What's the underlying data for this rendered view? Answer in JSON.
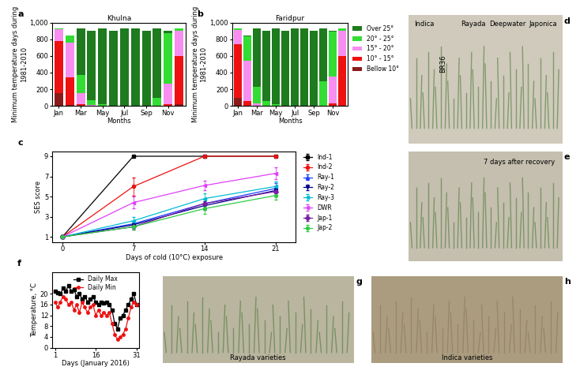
{
  "chart_data": [
    {
      "panel": "a",
      "type": "bar",
      "stacked": true,
      "title": "Khulna",
      "x_label": "Months",
      "y_label": "Minimum temperature days during 1981-2010",
      "categories": [
        "Jan",
        null,
        "Mar",
        null,
        "May",
        null,
        "Jul",
        null,
        "Sep",
        null,
        "Nov",
        null
      ],
      "series": [
        {
          "name": "Bellow 10°",
          "color": "#8b1a1a",
          "values": [
            150,
            10,
            0,
            0,
            0,
            0,
            0,
            0,
            0,
            0,
            0,
            20
          ]
        },
        {
          "name": "10° - 15°",
          "color": "#ee1111",
          "values": [
            630,
            330,
            20,
            0,
            0,
            0,
            0,
            0,
            0,
            0,
            20,
            580
          ]
        },
        {
          "name": "15° - 20°",
          "color": "#f78ef0",
          "values": [
            140,
            420,
            130,
            10,
            0,
            0,
            0,
            0,
            0,
            0,
            250,
            300
          ]
        },
        {
          "name": "20° - 25°",
          "color": "#33dd33",
          "values": [
            10,
            90,
            220,
            60,
            20,
            0,
            0,
            0,
            5,
            100,
            600,
            30
          ]
        },
        {
          "name": "Over 25°",
          "color": "#1e7b1e",
          "values": [
            0,
            0,
            560,
            830,
            910,
            900,
            930,
            930,
            895,
            830,
            30,
            0
          ]
        }
      ],
      "ylim": [
        0,
        1000
      ],
      "yticks": [
        0,
        200,
        400,
        600,
        800,
        {
          "value": 1000,
          "label": "1,000"
        }
      ],
      "grid": false
    },
    {
      "panel": "b",
      "type": "bar",
      "stacked": true,
      "title": "Faridpur",
      "x_label": "Months",
      "y_label": "Minimum temperature days during 1981-2010",
      "categories": [
        "Jan",
        null,
        "Mar",
        null,
        "May",
        null,
        "Jul",
        null,
        "Sep",
        null,
        "Nov",
        null
      ],
      "series": [
        {
          "name": "Bellow 10°",
          "color": "#8b1a1a",
          "values": [
            100,
            0,
            0,
            0,
            0,
            0,
            0,
            0,
            0,
            0,
            0,
            0
          ]
        },
        {
          "name": "10° - 15°",
          "color": "#ee1111",
          "values": [
            640,
            60,
            0,
            0,
            0,
            0,
            0,
            0,
            0,
            0,
            30,
            600
          ]
        },
        {
          "name": "15° - 20°",
          "color": "#f78ef0",
          "values": [
            170,
            480,
            30,
            0,
            0,
            0,
            0,
            0,
            0,
            0,
            320,
            300
          ]
        },
        {
          "name": "20° - 25°",
          "color": "#33dd33",
          "values": [
            20,
            300,
            200,
            60,
            20,
            0,
            0,
            0,
            0,
            300,
            540,
            30
          ]
        },
        {
          "name": "Over 25°",
          "color": "#1e7b1e",
          "values": [
            0,
            10,
            700,
            840,
            910,
            900,
            930,
            930,
            900,
            630,
            10,
            0
          ]
        }
      ],
      "ylim": [
        0,
        1000
      ],
      "yticks": [
        0,
        200,
        400,
        600,
        800,
        {
          "value": 1000,
          "label": "1,000"
        }
      ],
      "grid": false,
      "legend": "right"
    },
    {
      "panel": "c",
      "type": "line",
      "x_label": "Days of cold (10°C) exposure",
      "y_label": "SES score",
      "x": [
        0,
        7,
        14,
        21
      ],
      "series": [
        {
          "name": "Ind-1",
          "color": "#000000",
          "marker": "square",
          "values": [
            1,
            9,
            9,
            9
          ],
          "errors": [
            0,
            0,
            0,
            0
          ]
        },
        {
          "name": "Ind-2",
          "color": "#ee1111",
          "marker": "circle",
          "values": [
            1,
            6,
            9,
            9
          ],
          "errors": [
            0,
            0.9,
            0,
            0
          ]
        },
        {
          "name": "Ray-1",
          "color": "#1f3fff",
          "marker": "triangle_up",
          "values": [
            1,
            2.3,
            4.3,
            5.8
          ],
          "errors": [
            0,
            0.3,
            0.5,
            0.5
          ]
        },
        {
          "name": "Ray-2",
          "color": "#00008b",
          "marker": "triangle_down",
          "values": [
            1,
            2.2,
            4.1,
            5.6
          ],
          "errors": [
            0,
            0.3,
            0.4,
            0.4
          ]
        },
        {
          "name": "Ray-3",
          "color": "#00bcd4",
          "marker": "triangle_left",
          "values": [
            1,
            2.6,
            4.8,
            6.0
          ],
          "errors": [
            0,
            0.4,
            0.5,
            0.5
          ]
        },
        {
          "name": "DWR",
          "color": "#e040fb",
          "marker": "triangle_left",
          "values": [
            1,
            4.4,
            6.1,
            7.3
          ],
          "errors": [
            0,
            0.6,
            0.5,
            0.6
          ]
        },
        {
          "name": "Jap-1",
          "color": "#7b1fa2",
          "marker": "diamond",
          "values": [
            1,
            2.0,
            4.3,
            5.5
          ],
          "errors": [
            0,
            0.3,
            0.5,
            0.4
          ]
        },
        {
          "name": "Jap-2",
          "color": "#2ecc40",
          "marker": "hexagon",
          "values": [
            1,
            2.0,
            3.8,
            5.1
          ],
          "errors": [
            0,
            0.3,
            0.5,
            0.4
          ]
        }
      ],
      "xlim": [
        -1,
        23
      ],
      "xticks": [
        0,
        7,
        14,
        21
      ],
      "ylim": [
        0.5,
        9.5
      ],
      "yticks": [
        1,
        3,
        5,
        7,
        9
      ],
      "grid": false,
      "legend": "right"
    },
    {
      "panel": "f",
      "type": "line",
      "x_label": "Days (January 2016)",
      "y_label": "Temperature, °C",
      "x": [
        1,
        2,
        3,
        4,
        5,
        6,
        7,
        8,
        9,
        10,
        11,
        12,
        13,
        14,
        15,
        16,
        17,
        18,
        19,
        20,
        21,
        22,
        23,
        24,
        25,
        26,
        27,
        28,
        29,
        30,
        31
      ],
      "series": [
        {
          "name": "Daily Max",
          "color": "#000000",
          "marker": "square",
          "values": [
            21,
            20.5,
            20,
            22,
            21,
            23,
            21,
            21.5,
            19,
            20,
            18,
            19,
            17,
            18,
            19,
            17,
            16,
            17,
            16.5,
            17,
            16,
            14,
            9,
            7,
            11,
            12,
            14,
            16,
            18,
            20,
            16
          ]
        },
        {
          "name": "Daily Min",
          "color": "#ee1111",
          "marker": "circle",
          "values": [
            17,
            15,
            17,
            19,
            18,
            16,
            17,
            14,
            16,
            13,
            17,
            15,
            13,
            15,
            16,
            12,
            14,
            12,
            13,
            12,
            13,
            9,
            5,
            3,
            4,
            5,
            7,
            11,
            15,
            17,
            16
          ]
        }
      ],
      "xlim": [
        0,
        32
      ],
      "xticks": [
        1,
        16,
        31
      ],
      "ylim": [
        0,
        28
      ],
      "yticks": [
        0,
        4,
        8,
        12,
        16,
        20
      ],
      "grid": false,
      "legend": "upper center"
    }
  ],
  "photos": [
    {
      "panel": "d",
      "labels": [
        "Indica",
        "BR36",
        "Rayada",
        "Deepwater",
        "Japonica"
      ]
    },
    {
      "panel": "e",
      "labels": [
        "7 days after recovery"
      ]
    },
    {
      "panel": "g",
      "labels": [
        "Rayada varieties"
      ]
    },
    {
      "panel": "h",
      "labels": [
        "Indica varieties"
      ]
    }
  ]
}
